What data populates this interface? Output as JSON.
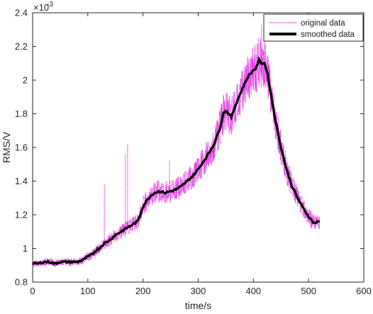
{
  "chart_data": {
    "type": "line",
    "xlabel": "time/s",
    "ylabel": "RMS/V",
    "y_exponent_label": "×10",
    "y_exponent_power": "-3",
    "xlim": [
      0,
      600
    ],
    "ylim": [
      0.8,
      2.4
    ],
    "x_ticks": [
      "0",
      "100",
      "200",
      "300",
      "400",
      "500",
      "600"
    ],
    "y_ticks": [
      "0.8",
      "1",
      "1.2",
      "1.4",
      "1.6",
      "1.8",
      "2",
      "2.2",
      "2.4"
    ],
    "grid": false,
    "legend_position": "top-right",
    "series": [
      {
        "name": "original data",
        "color": "#e020e0",
        "style": "dotted",
        "x": [
          0,
          10,
          20,
          30,
          40,
          50,
          60,
          70,
          80,
          90,
          100,
          110,
          115,
          120,
          130,
          140,
          150,
          160,
          170,
          180,
          190,
          195,
          200,
          210,
          220,
          230,
          240,
          250,
          260,
          270,
          280,
          290,
          300,
          310,
          320,
          330,
          340,
          345,
          350,
          360,
          370,
          380,
          390,
          400,
          405,
          410,
          415,
          420,
          425,
          430,
          440,
          450,
          460,
          470,
          480,
          490,
          500,
          510,
          520
        ],
        "values": [
          0.91,
          0.91,
          0.92,
          0.92,
          0.91,
          0.92,
          0.92,
          0.92,
          0.92,
          0.93,
          0.95,
          0.97,
          0.99,
          1.0,
          1.03,
          1.05,
          1.08,
          1.1,
          1.12,
          1.14,
          1.16,
          1.2,
          1.25,
          1.3,
          1.33,
          1.34,
          1.33,
          1.34,
          1.35,
          1.37,
          1.4,
          1.43,
          1.47,
          1.52,
          1.57,
          1.63,
          1.72,
          1.8,
          1.82,
          1.78,
          1.87,
          1.95,
          2.02,
          2.06,
          2.07,
          2.12,
          2.1,
          2.1,
          2.05,
          1.95,
          1.76,
          1.6,
          1.47,
          1.37,
          1.3,
          1.24,
          1.19,
          1.15,
          1.16
        ],
        "spikes": [
          {
            "x": 130,
            "y": 1.38
          },
          {
            "x": 168,
            "y": 1.56
          },
          {
            "x": 172,
            "y": 1.62
          },
          {
            "x": 248,
            "y": 1.52
          },
          {
            "x": 285,
            "y": 1.48
          },
          {
            "x": 415,
            "y": 2.33
          }
        ]
      },
      {
        "name": "smoothed data",
        "color": "#000000",
        "style": "solid",
        "x": [
          0,
          10,
          20,
          30,
          40,
          50,
          60,
          70,
          80,
          90,
          100,
          110,
          115,
          120,
          130,
          140,
          150,
          160,
          170,
          180,
          190,
          195,
          200,
          210,
          220,
          230,
          240,
          250,
          260,
          270,
          280,
          290,
          300,
          310,
          320,
          330,
          340,
          345,
          350,
          360,
          370,
          380,
          390,
          400,
          405,
          410,
          415,
          420,
          425,
          430,
          440,
          450,
          460,
          470,
          480,
          490,
          500,
          510,
          520
        ],
        "values": [
          0.91,
          0.91,
          0.92,
          0.92,
          0.91,
          0.92,
          0.92,
          0.92,
          0.92,
          0.93,
          0.95,
          0.97,
          0.99,
          1.0,
          1.03,
          1.05,
          1.08,
          1.1,
          1.12,
          1.14,
          1.16,
          1.2,
          1.25,
          1.3,
          1.33,
          1.34,
          1.33,
          1.34,
          1.35,
          1.37,
          1.4,
          1.43,
          1.47,
          1.52,
          1.57,
          1.63,
          1.72,
          1.8,
          1.82,
          1.78,
          1.87,
          1.95,
          2.02,
          2.06,
          2.07,
          2.12,
          2.1,
          2.1,
          2.05,
          1.95,
          1.76,
          1.6,
          1.47,
          1.37,
          1.3,
          1.24,
          1.19,
          1.15,
          1.16
        ]
      }
    ]
  }
}
